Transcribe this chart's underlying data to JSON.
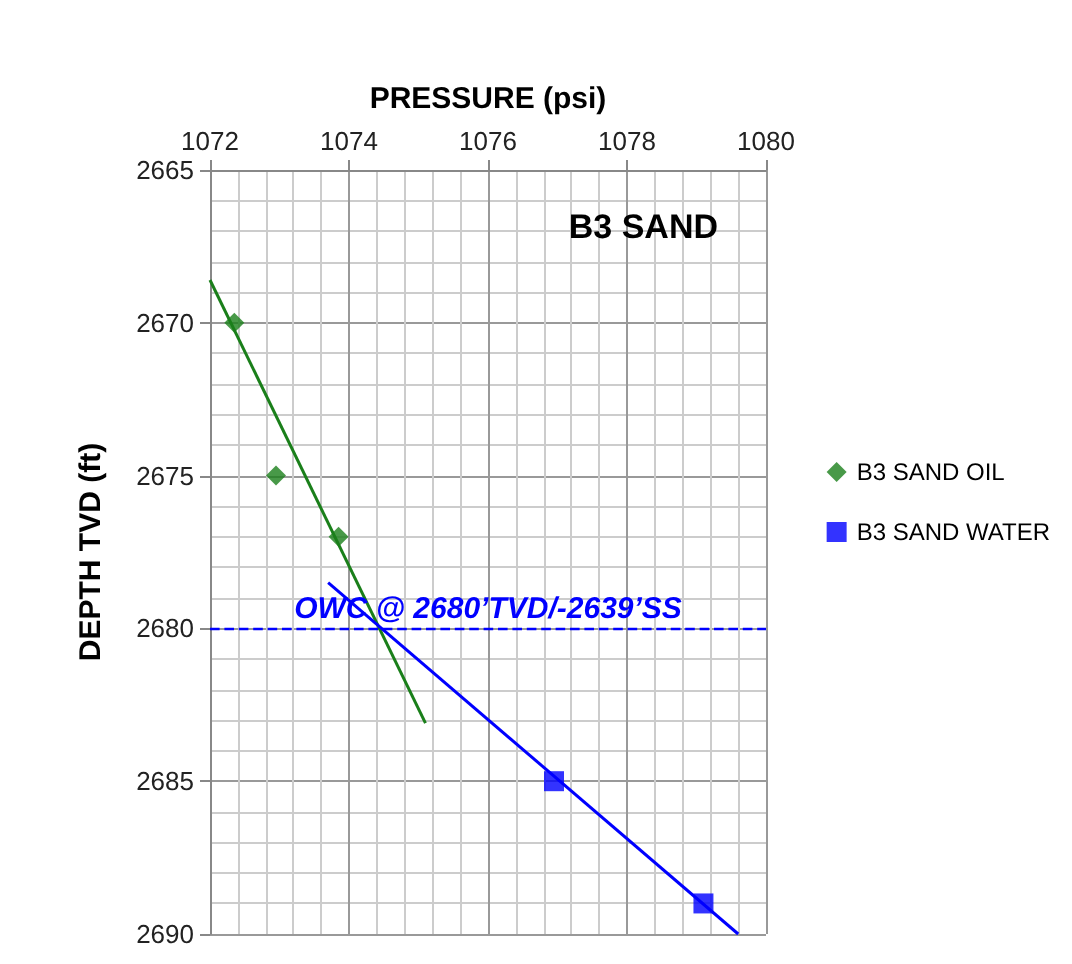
{
  "chart_data": {
    "type": "scatter",
    "title": "B3 SAND",
    "xlabel": "PRESSURE (psi)",
    "ylabel": "DEPTH TVD (ft)",
    "xlim": [
      1072,
      1080
    ],
    "xticks": [
      1072,
      1074,
      1076,
      1078,
      1080
    ],
    "ylim": [
      2690,
      2665
    ],
    "yticks": [
      2665,
      2670,
      2675,
      2680,
      2685,
      2690
    ],
    "grid": true,
    "legend": "right",
    "series": [
      {
        "name": "B3 SAND OIL",
        "color": "#1a7f1a",
        "marker": "diamond",
        "x": [
          1072.35,
          1072.95,
          1073.85
        ],
        "values": [
          2670,
          2675,
          2677
        ]
      },
      {
        "name": "B3 SAND WATER",
        "color": "#0000ff",
        "marker": "square",
        "x": [
          1076.95,
          1079.1
        ],
        "values": [
          2685,
          2689
        ]
      },
      {
        "type": "line",
        "color": "#1a7f1a",
        "marker": "none",
        "x": [
          1072,
          1075.1
        ],
        "values": [
          2668.6,
          2683.1
        ]
      },
      {
        "type": "line",
        "color": "#0000ff",
        "marker": "none",
        "x": [
          1073.7,
          1079.6
        ],
        "values": [
          2678.5,
          2690
        ]
      }
    ],
    "ref_lines": [
      {
        "axis": "y",
        "value": 2680,
        "label": "OWC @ 2680’TVD/-2639’SS",
        "color": "#0000ff",
        "line_style": "dashed"
      }
    ]
  }
}
